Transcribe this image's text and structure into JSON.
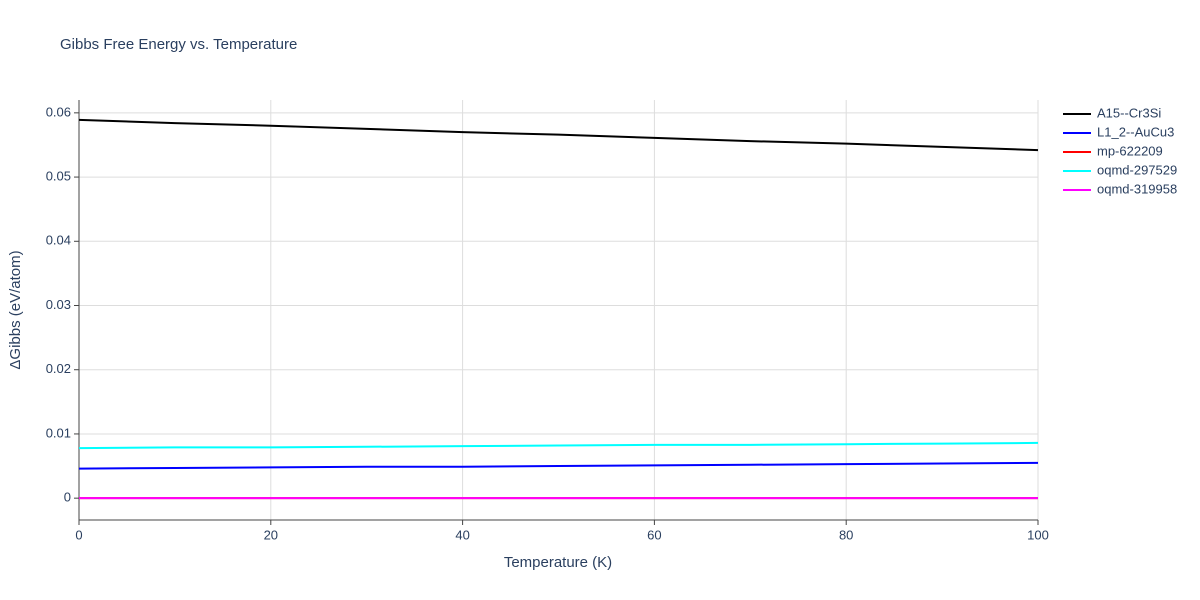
{
  "chart_data": {
    "type": "line",
    "title": "Gibbs Free Energy vs. Temperature",
    "xlabel": "Temperature (K)",
    "ylabel": "ΔGibbs (eV/atom)",
    "x": [
      0,
      10,
      20,
      30,
      40,
      50,
      60,
      70,
      80,
      90,
      100
    ],
    "series": [
      {
        "name": "A15--Cr3Si",
        "color": "#000000",
        "values": [
          0.0589,
          0.0584,
          0.058,
          0.0575,
          0.057,
          0.0566,
          0.0561,
          0.0556,
          0.0552,
          0.0547,
          0.0542
        ]
      },
      {
        "name": "L1_2--AuCu3",
        "color": "#0000ff",
        "values": [
          0.0046,
          0.0047,
          0.0048,
          0.0049,
          0.0049,
          0.005,
          0.0051,
          0.0052,
          0.0053,
          0.0054,
          0.0055
        ]
      },
      {
        "name": "mp-622209",
        "color": "#ff0000",
        "values": [
          0,
          0,
          0,
          0,
          0,
          0,
          0,
          0,
          0,
          0,
          0
        ]
      },
      {
        "name": "oqmd-297529",
        "color": "#00ffff",
        "values": [
          0.0078,
          0.0079,
          0.0079,
          0.008,
          0.0081,
          0.0082,
          0.0083,
          0.0083,
          0.0084,
          0.0085,
          0.0086
        ]
      },
      {
        "name": "oqmd-319958",
        "color": "#ff00ff",
        "values": [
          0,
          0,
          0,
          0,
          0,
          0,
          0,
          0,
          0,
          0,
          0
        ]
      }
    ],
    "xlim": [
      0,
      100
    ],
    "xticks": [
      0,
      20,
      40,
      60,
      80,
      100
    ],
    "ylim": [
      -0.0034,
      0.062
    ],
    "yticks": [
      0,
      0.01,
      0.02,
      0.03,
      0.04,
      0.05,
      0.06
    ],
    "grid": true,
    "legend": "right"
  }
}
